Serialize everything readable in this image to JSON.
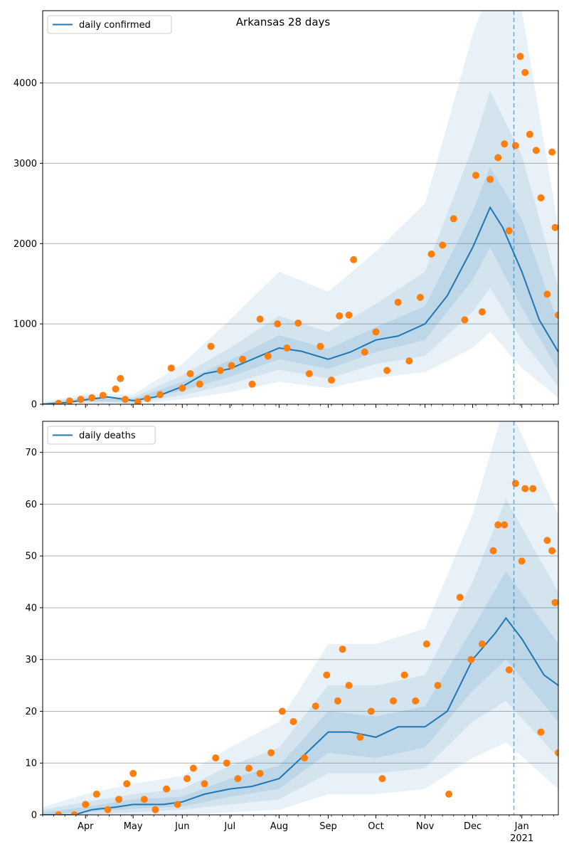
{
  "title": "Arkansas 28 days",
  "colors": {
    "line": "#1f77b4",
    "points": "#ff7f0e",
    "band": "#1f77b4",
    "grid": "#b0b0b0",
    "axis": "#000000",
    "vline": "#1f77b4"
  },
  "x_axis": {
    "ticks": [
      {
        "date": "2020-04-01",
        "label": "Apr"
      },
      {
        "date": "2020-05-01",
        "label": "May"
      },
      {
        "date": "2020-06-01",
        "label": "Jun"
      },
      {
        "date": "2020-07-01",
        "label": "Jul"
      },
      {
        "date": "2020-08-01",
        "label": "Aug"
      },
      {
        "date": "2020-09-01",
        "label": "Sep"
      },
      {
        "date": "2020-10-01",
        "label": "Oct"
      },
      {
        "date": "2020-11-01",
        "label": "Nov"
      },
      {
        "date": "2020-12-01",
        "label": "Dec"
      },
      {
        "date": "2021-01-01",
        "label": "Jan"
      }
    ],
    "year_label": "2021",
    "range": [
      "2020-03-05",
      "2021-01-24"
    ]
  },
  "chart_data": [
    {
      "type": "line",
      "legend": "daily confirmed",
      "legend_position": "top-left",
      "grid": "horizontal",
      "ylim": [
        0,
        4900
      ],
      "yticks": [
        0,
        1000,
        2000,
        3000,
        4000
      ],
      "forecast_start": "2020-12-27",
      "fitted_line": [
        {
          "x": "2020-03-05",
          "y": 0
        },
        {
          "x": "2020-03-20",
          "y": 20
        },
        {
          "x": "2020-04-01",
          "y": 55
        },
        {
          "x": "2020-04-15",
          "y": 90
        },
        {
          "x": "2020-05-01",
          "y": 45
        },
        {
          "x": "2020-05-15",
          "y": 90
        },
        {
          "x": "2020-06-01",
          "y": 220
        },
        {
          "x": "2020-06-15",
          "y": 380
        },
        {
          "x": "2020-07-01",
          "y": 440
        },
        {
          "x": "2020-07-15",
          "y": 560
        },
        {
          "x": "2020-08-01",
          "y": 700
        },
        {
          "x": "2020-08-15",
          "y": 660
        },
        {
          "x": "2020-09-01",
          "y": 560
        },
        {
          "x": "2020-09-15",
          "y": 650
        },
        {
          "x": "2020-10-01",
          "y": 800
        },
        {
          "x": "2020-10-15",
          "y": 850
        },
        {
          "x": "2020-11-01",
          "y": 1000
        },
        {
          "x": "2020-11-15",
          "y": 1350
        },
        {
          "x": "2020-12-01",
          "y": 1950
        },
        {
          "x": "2020-12-12",
          "y": 2450
        },
        {
          "x": "2020-12-20",
          "y": 2200
        },
        {
          "x": "2021-01-01",
          "y": 1650
        },
        {
          "x": "2021-01-12",
          "y": 1050
        },
        {
          "x": "2021-01-24",
          "y": 650
        }
      ],
      "band_inner": [
        {
          "x": "2020-03-05",
          "lo": 0,
          "hi": 10
        },
        {
          "x": "2020-04-01",
          "lo": 40,
          "hi": 75
        },
        {
          "x": "2020-05-01",
          "lo": 30,
          "hi": 65
        },
        {
          "x": "2020-06-01",
          "lo": 170,
          "hi": 280
        },
        {
          "x": "2020-07-01",
          "lo": 340,
          "hi": 550
        },
        {
          "x": "2020-08-01",
          "lo": 560,
          "hi": 860
        },
        {
          "x": "2020-09-01",
          "lo": 440,
          "hi": 690
        },
        {
          "x": "2020-10-01",
          "lo": 650,
          "hi": 960
        },
        {
          "x": "2020-11-01",
          "lo": 800,
          "hi": 1220
        },
        {
          "x": "2020-12-01",
          "lo": 1550,
          "hi": 2400
        },
        {
          "x": "2020-12-12",
          "lo": 1950,
          "hi": 2950
        },
        {
          "x": "2021-01-01",
          "lo": 1200,
          "hi": 2300
        },
        {
          "x": "2021-01-24",
          "lo": 420,
          "hi": 1000
        }
      ],
      "band_mid": [
        {
          "x": "2020-03-05",
          "lo": 0,
          "hi": 15
        },
        {
          "x": "2020-04-01",
          "lo": 25,
          "hi": 95
        },
        {
          "x": "2020-05-01",
          "lo": 15,
          "hi": 85
        },
        {
          "x": "2020-06-01",
          "lo": 110,
          "hi": 360
        },
        {
          "x": "2020-07-01",
          "lo": 250,
          "hi": 700
        },
        {
          "x": "2020-08-01",
          "lo": 430,
          "hi": 1100
        },
        {
          "x": "2020-09-01",
          "lo": 320,
          "hi": 900
        },
        {
          "x": "2020-10-01",
          "lo": 500,
          "hi": 1250
        },
        {
          "x": "2020-11-01",
          "lo": 600,
          "hi": 1650
        },
        {
          "x": "2020-12-01",
          "lo": 1150,
          "hi": 3200
        },
        {
          "x": "2020-12-12",
          "lo": 1450,
          "hi": 3900
        },
        {
          "x": "2021-01-01",
          "lo": 800,
          "hi": 3100
        },
        {
          "x": "2021-01-24",
          "lo": 220,
          "hi": 1450
        }
      ],
      "band_outer": [
        {
          "x": "2020-03-05",
          "lo": 0,
          "hi": 25
        },
        {
          "x": "2020-04-01",
          "lo": 10,
          "hi": 130
        },
        {
          "x": "2020-05-01",
          "lo": 5,
          "hi": 120
        },
        {
          "x": "2020-06-01",
          "lo": 60,
          "hi": 500
        },
        {
          "x": "2020-07-01",
          "lo": 150,
          "hi": 1050
        },
        {
          "x": "2020-08-01",
          "lo": 280,
          "hi": 1650
        },
        {
          "x": "2020-09-01",
          "lo": 200,
          "hi": 1400
        },
        {
          "x": "2020-10-01",
          "lo": 330,
          "hi": 1900
        },
        {
          "x": "2020-11-01",
          "lo": 400,
          "hi": 2500
        },
        {
          "x": "2020-12-01",
          "lo": 700,
          "hi": 4600
        },
        {
          "x": "2020-12-12",
          "lo": 900,
          "hi": 5200
        },
        {
          "x": "2021-01-01",
          "lo": 450,
          "hi": 4900
        },
        {
          "x": "2021-01-24",
          "lo": 80,
          "hi": 2200
        }
      ],
      "observed": [
        {
          "x": "2020-03-15",
          "y": 10
        },
        {
          "x": "2020-03-22",
          "y": 40
        },
        {
          "x": "2020-03-29",
          "y": 60
        },
        {
          "x": "2020-04-05",
          "y": 80
        },
        {
          "x": "2020-04-12",
          "y": 110
        },
        {
          "x": "2020-04-20",
          "y": 190
        },
        {
          "x": "2020-04-23",
          "y": 320
        },
        {
          "x": "2020-04-26",
          "y": 60
        },
        {
          "x": "2020-05-04",
          "y": 30
        },
        {
          "x": "2020-05-10",
          "y": 70
        },
        {
          "x": "2020-05-18",
          "y": 120
        },
        {
          "x": "2020-05-25",
          "y": 450
        },
        {
          "x": "2020-06-01",
          "y": 200
        },
        {
          "x": "2020-06-06",
          "y": 380
        },
        {
          "x": "2020-06-12",
          "y": 250
        },
        {
          "x": "2020-06-19",
          "y": 720
        },
        {
          "x": "2020-06-25",
          "y": 420
        },
        {
          "x": "2020-07-02",
          "y": 480
        },
        {
          "x": "2020-07-09",
          "y": 560
        },
        {
          "x": "2020-07-15",
          "y": 250
        },
        {
          "x": "2020-07-20",
          "y": 1060
        },
        {
          "x": "2020-07-25",
          "y": 600
        },
        {
          "x": "2020-07-31",
          "y": 1000
        },
        {
          "x": "2020-08-06",
          "y": 700
        },
        {
          "x": "2020-08-13",
          "y": 1010
        },
        {
          "x": "2020-08-20",
          "y": 380
        },
        {
          "x": "2020-08-27",
          "y": 720
        },
        {
          "x": "2020-09-03",
          "y": 300
        },
        {
          "x": "2020-09-08",
          "y": 1100
        },
        {
          "x": "2020-09-14",
          "y": 1110
        },
        {
          "x": "2020-09-17",
          "y": 1800
        },
        {
          "x": "2020-09-24",
          "y": 650
        },
        {
          "x": "2020-10-01",
          "y": 900
        },
        {
          "x": "2020-10-08",
          "y": 420
        },
        {
          "x": "2020-10-15",
          "y": 1270
        },
        {
          "x": "2020-10-22",
          "y": 540
        },
        {
          "x": "2020-10-29",
          "y": 1330
        },
        {
          "x": "2020-11-05",
          "y": 1870
        },
        {
          "x": "2020-11-12",
          "y": 1980
        },
        {
          "x": "2020-11-19",
          "y": 2310
        },
        {
          "x": "2020-11-26",
          "y": 1050
        },
        {
          "x": "2020-12-03",
          "y": 2850
        },
        {
          "x": "2020-12-07",
          "y": 1150
        },
        {
          "x": "2020-12-12",
          "y": 2800
        },
        {
          "x": "2020-12-17",
          "y": 3070
        },
        {
          "x": "2020-12-21",
          "y": 3240
        },
        {
          "x": "2020-12-24",
          "y": 2160
        },
        {
          "x": "2020-12-28",
          "y": 3220
        },
        {
          "x": "2020-12-31",
          "y": 4330
        },
        {
          "x": "2021-01-03",
          "y": 4130
        },
        {
          "x": "2021-01-06",
          "y": 3360
        },
        {
          "x": "2021-01-10",
          "y": 3160
        },
        {
          "x": "2021-01-13",
          "y": 2570
        },
        {
          "x": "2021-01-17",
          "y": 1370
        },
        {
          "x": "2021-01-20",
          "y": 3140
        },
        {
          "x": "2021-01-22",
          "y": 2200
        },
        {
          "x": "2021-01-24",
          "y": 1110
        }
      ]
    },
    {
      "type": "line",
      "legend": "daily deaths",
      "legend_position": "top-left",
      "grid": "horizontal",
      "ylim": [
        0,
        76
      ],
      "yticks": [
        0,
        10,
        20,
        30,
        40,
        50,
        60,
        70
      ],
      "forecast_start": "2020-12-27",
      "fitted_line": [
        {
          "x": "2020-03-05",
          "y": 0
        },
        {
          "x": "2020-03-25",
          "y": 0
        },
        {
          "x": "2020-04-05",
          "y": 1
        },
        {
          "x": "2020-04-20",
          "y": 1.5
        },
        {
          "x": "2020-05-01",
          "y": 2
        },
        {
          "x": "2020-05-20",
          "y": 2
        },
        {
          "x": "2020-06-01",
          "y": 2.5
        },
        {
          "x": "2020-06-15",
          "y": 4
        },
        {
          "x": "2020-07-01",
          "y": 5
        },
        {
          "x": "2020-07-15",
          "y": 5.5
        },
        {
          "x": "2020-08-01",
          "y": 7
        },
        {
          "x": "2020-08-15",
          "y": 11
        },
        {
          "x": "2020-09-01",
          "y": 16
        },
        {
          "x": "2020-09-15",
          "y": 16
        },
        {
          "x": "2020-10-01",
          "y": 15
        },
        {
          "x": "2020-10-15",
          "y": 17
        },
        {
          "x": "2020-11-01",
          "y": 17
        },
        {
          "x": "2020-11-15",
          "y": 20
        },
        {
          "x": "2020-12-01",
          "y": 30
        },
        {
          "x": "2020-12-15",
          "y": 35
        },
        {
          "x": "2020-12-22",
          "y": 38
        },
        {
          "x": "2021-01-01",
          "y": 34
        },
        {
          "x": "2021-01-15",
          "y": 27
        },
        {
          "x": "2021-01-24",
          "y": 25
        }
      ],
      "band_inner": [
        {
          "x": "2020-03-05",
          "lo": 0,
          "hi": 0.5
        },
        {
          "x": "2020-04-01",
          "lo": 0.5,
          "hi": 1.5
        },
        {
          "x": "2020-05-01",
          "lo": 1.2,
          "hi": 3
        },
        {
          "x": "2020-06-01",
          "lo": 1.6,
          "hi": 3.5
        },
        {
          "x": "2020-07-01",
          "lo": 3.5,
          "hi": 7
        },
        {
          "x": "2020-08-01",
          "lo": 5,
          "hi": 9.5
        },
        {
          "x": "2020-09-01",
          "lo": 12,
          "hi": 20
        },
        {
          "x": "2020-10-01",
          "lo": 11,
          "hi": 19
        },
        {
          "x": "2020-11-01",
          "lo": 13,
          "hi": 21
        },
        {
          "x": "2020-12-01",
          "lo": 24,
          "hi": 36
        },
        {
          "x": "2020-12-22",
          "lo": 30,
          "hi": 47
        },
        {
          "x": "2021-01-24",
          "lo": 18,
          "hi": 33
        }
      ],
      "band_mid": [
        {
          "x": "2020-03-05",
          "lo": 0,
          "hi": 1
        },
        {
          "x": "2020-04-01",
          "lo": 0,
          "hi": 2.5
        },
        {
          "x": "2020-05-01",
          "lo": 0.5,
          "hi": 4
        },
        {
          "x": "2020-06-01",
          "lo": 1,
          "hi": 5
        },
        {
          "x": "2020-07-01",
          "lo": 2,
          "hi": 9.5
        },
        {
          "x": "2020-08-01",
          "lo": 3,
          "hi": 13
        },
        {
          "x": "2020-09-01",
          "lo": 8,
          "hi": 25
        },
        {
          "x": "2020-10-01",
          "lo": 8,
          "hi": 25
        },
        {
          "x": "2020-11-01",
          "lo": 9,
          "hi": 27
        },
        {
          "x": "2020-12-01",
          "lo": 18,
          "hi": 45
        },
        {
          "x": "2020-12-22",
          "lo": 22,
          "hi": 61
        },
        {
          "x": "2021-01-24",
          "lo": 11,
          "hi": 43
        }
      ],
      "band_outer": [
        {
          "x": "2020-03-05",
          "lo": 0,
          "hi": 1.5
        },
        {
          "x": "2020-04-01",
          "lo": 0,
          "hi": 4
        },
        {
          "x": "2020-05-01",
          "lo": 0,
          "hi": 6
        },
        {
          "x": "2020-06-01",
          "lo": 0,
          "hi": 7.5
        },
        {
          "x": "2020-07-01",
          "lo": 0.5,
          "hi": 13
        },
        {
          "x": "2020-08-01",
          "lo": 1,
          "hi": 18
        },
        {
          "x": "2020-09-01",
          "lo": 4,
          "hi": 33
        },
        {
          "x": "2020-10-01",
          "lo": 4,
          "hi": 33
        },
        {
          "x": "2020-11-01",
          "lo": 5,
          "hi": 36
        },
        {
          "x": "2020-12-01",
          "lo": 11,
          "hi": 58
        },
        {
          "x": "2020-12-22",
          "lo": 14,
          "hi": 80
        },
        {
          "x": "2021-01-24",
          "lo": 5,
          "hi": 58
        }
      ],
      "observed": [
        {
          "x": "2020-03-15",
          "y": 0
        },
        {
          "x": "2020-03-25",
          "y": 0
        },
        {
          "x": "2020-04-01",
          "y": 2
        },
        {
          "x": "2020-04-08",
          "y": 4
        },
        {
          "x": "2020-04-15",
          "y": 1
        },
        {
          "x": "2020-04-22",
          "y": 3
        },
        {
          "x": "2020-04-27",
          "y": 6
        },
        {
          "x": "2020-05-01",
          "y": 8
        },
        {
          "x": "2020-05-08",
          "y": 3
        },
        {
          "x": "2020-05-15",
          "y": 1
        },
        {
          "x": "2020-05-22",
          "y": 5
        },
        {
          "x": "2020-05-29",
          "y": 2
        },
        {
          "x": "2020-06-04",
          "y": 7
        },
        {
          "x": "2020-06-08",
          "y": 9
        },
        {
          "x": "2020-06-15",
          "y": 6
        },
        {
          "x": "2020-06-22",
          "y": 11
        },
        {
          "x": "2020-06-29",
          "y": 10
        },
        {
          "x": "2020-07-06",
          "y": 7
        },
        {
          "x": "2020-07-13",
          "y": 9
        },
        {
          "x": "2020-07-20",
          "y": 8
        },
        {
          "x": "2020-07-27",
          "y": 12
        },
        {
          "x": "2020-08-03",
          "y": 20
        },
        {
          "x": "2020-08-10",
          "y": 18
        },
        {
          "x": "2020-08-17",
          "y": 11
        },
        {
          "x": "2020-08-24",
          "y": 21
        },
        {
          "x": "2020-08-31",
          "y": 27
        },
        {
          "x": "2020-09-07",
          "y": 22
        },
        {
          "x": "2020-09-10",
          "y": 32
        },
        {
          "x": "2020-09-14",
          "y": 25
        },
        {
          "x": "2020-09-21",
          "y": 15
        },
        {
          "x": "2020-09-28",
          "y": 20
        },
        {
          "x": "2020-10-05",
          "y": 7
        },
        {
          "x": "2020-10-12",
          "y": 22
        },
        {
          "x": "2020-10-19",
          "y": 27
        },
        {
          "x": "2020-10-26",
          "y": 22
        },
        {
          "x": "2020-11-02",
          "y": 33
        },
        {
          "x": "2020-11-09",
          "y": 25
        },
        {
          "x": "2020-11-16",
          "y": 4
        },
        {
          "x": "2020-11-23",
          "y": 42
        },
        {
          "x": "2020-11-30",
          "y": 30
        },
        {
          "x": "2020-12-07",
          "y": 33
        },
        {
          "x": "2020-12-14",
          "y": 51
        },
        {
          "x": "2020-12-17",
          "y": 56
        },
        {
          "x": "2020-12-21",
          "y": 56
        },
        {
          "x": "2020-12-24",
          "y": 28
        },
        {
          "x": "2020-12-28",
          "y": 64
        },
        {
          "x": "2021-01-01",
          "y": 49
        },
        {
          "x": "2021-01-03",
          "y": 63
        },
        {
          "x": "2021-01-08",
          "y": 63
        },
        {
          "x": "2021-01-13",
          "y": 16
        },
        {
          "x": "2021-01-17",
          "y": 53
        },
        {
          "x": "2021-01-20",
          "y": 51
        },
        {
          "x": "2021-01-22",
          "y": 41
        },
        {
          "x": "2021-01-24",
          "y": 12
        }
      ]
    }
  ]
}
